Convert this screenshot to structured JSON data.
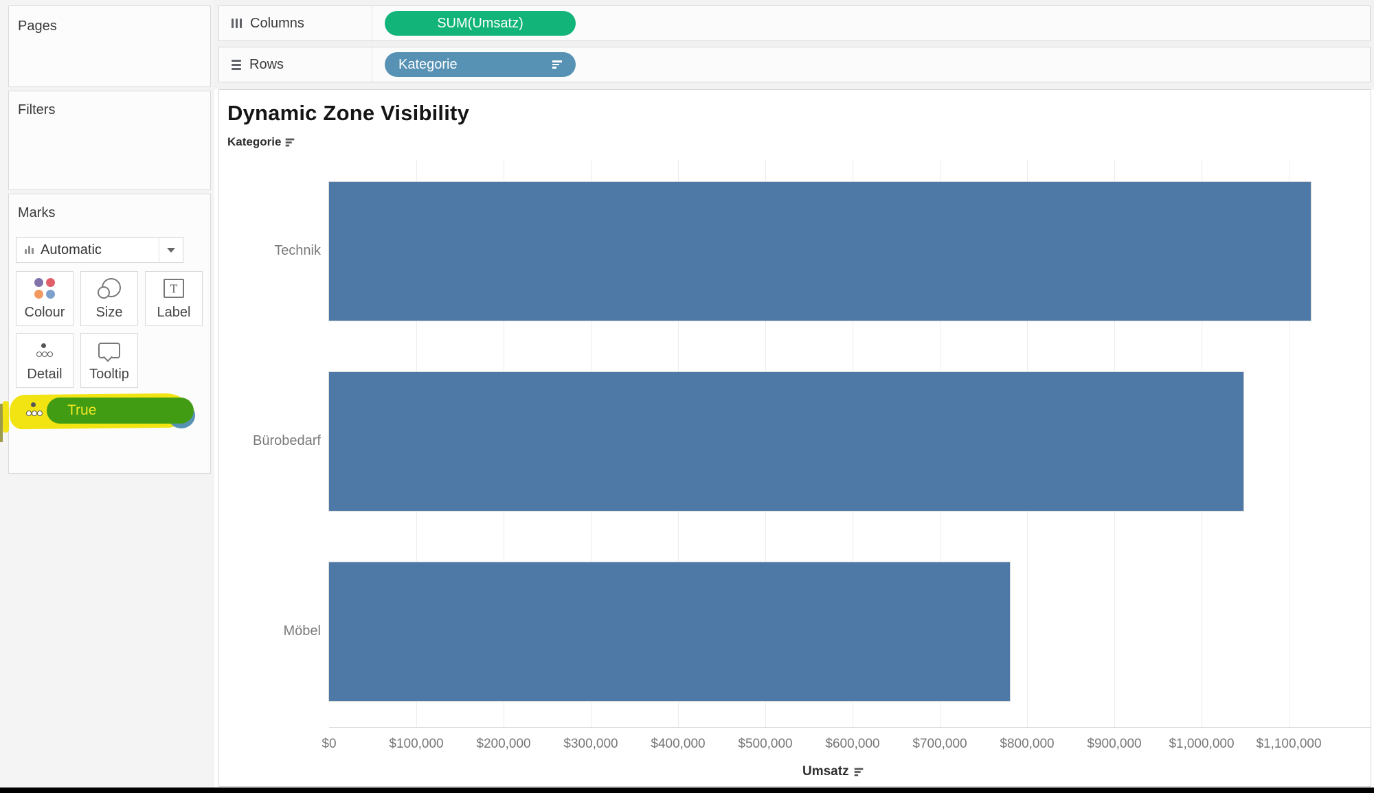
{
  "sidebar": {
    "pages_label": "Pages",
    "filters_label": "Filters",
    "marks": {
      "title": "Marks",
      "mark_type": "Automatic",
      "buttons": [
        {
          "label": "Colour"
        },
        {
          "label": "Size"
        },
        {
          "label": "Label"
        },
        {
          "label": "Detail"
        },
        {
          "label": "Tooltip"
        }
      ],
      "detail_pill": {
        "label": "True",
        "highlight_color": "#f2e313",
        "pill_color": "#419c13",
        "under_pill_color": "#5792b5"
      }
    }
  },
  "shelves": {
    "columns": {
      "label": "Columns",
      "pills": [
        {
          "label": "SUM(Umsatz)",
          "color": "#12b47a"
        }
      ]
    },
    "rows": {
      "label": "Rows",
      "pills": [
        {
          "label": "Kategorie",
          "color": "#5792b5",
          "sorted": "descending"
        }
      ]
    }
  },
  "chart_data": {
    "type": "bar",
    "orientation": "horizontal",
    "title": "Dynamic Zone Visibility",
    "row_header": "Kategorie",
    "categories": [
      "Technik",
      "Bürobedarf",
      "Möbel"
    ],
    "values": [
      1125000,
      1048000,
      780000
    ],
    "xlabel": "Umsatz",
    "xlim": [
      0,
      1190000
    ],
    "xtick_step": 100000,
    "xticks": [
      "$0",
      "$100,000",
      "$200,000",
      "$300,000",
      "$400,000",
      "$500,000",
      "$600,000",
      "$700,000",
      "$800,000",
      "$900,000",
      "$1,000,000",
      "$1,100,000"
    ],
    "bar_color": "#4e79a7",
    "grid": "vertical",
    "legend": "none",
    "sort": "descending by SUM(Umsatz)"
  }
}
